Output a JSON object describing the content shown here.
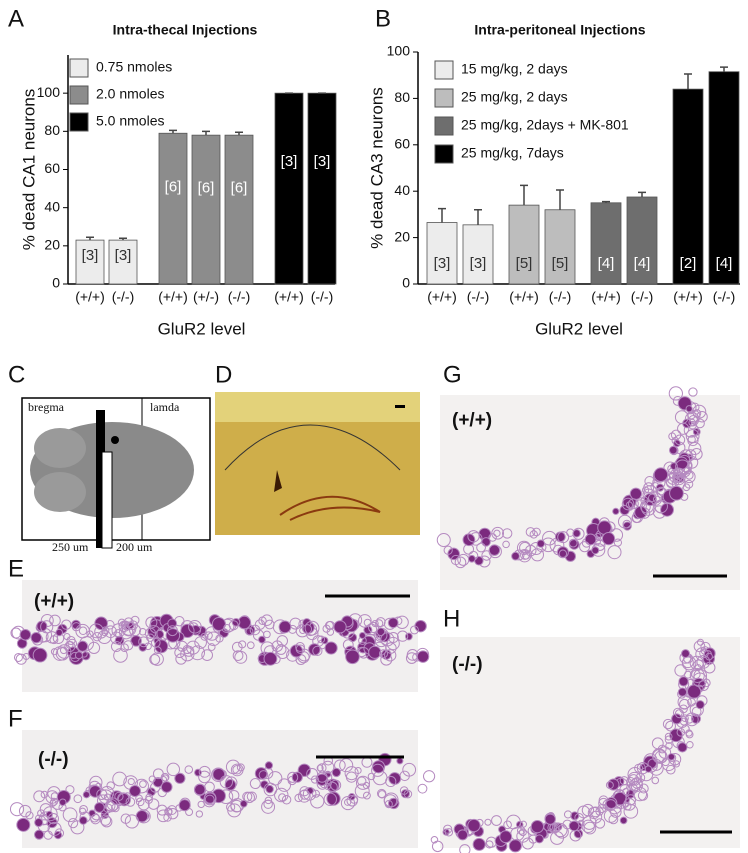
{
  "chart_data": [
    {
      "type": "bar",
      "panel": "A",
      "title": "Intra-thecal Injections",
      "ylabel": "% dead CA1  neurons",
      "xlabel": "GluR2 level",
      "categories": [
        "(+/+)",
        "(-/-)",
        "(+/+)",
        "(+/-)",
        "(-/-)",
        "(+/+)",
        "(-/-)"
      ],
      "series": [
        {
          "name": "0.75 nmoles",
          "color": "#ececec",
          "values": [
            23,
            23,
            null,
            null,
            null,
            null,
            null
          ],
          "errors": [
            1.5,
            1,
            null,
            null,
            null,
            null,
            null
          ]
        },
        {
          "name": "2.0 nmoles",
          "color": "#8c8c8c",
          "values": [
            null,
            null,
            79,
            78,
            78,
            null,
            null
          ],
          "errors": [
            null,
            null,
            1.5,
            2,
            1.5,
            null,
            null
          ]
        },
        {
          "name": "5.0 nmoles",
          "color": "#000000",
          "values": [
            null,
            null,
            null,
            null,
            null,
            100,
            100
          ],
          "errors": [
            null,
            null,
            null,
            null,
            null,
            0,
            0
          ]
        }
      ],
      "bar_labels": [
        "[3]",
        "[3]",
        "[6]",
        "[6]",
        "[6]",
        "[3]",
        "[3]"
      ],
      "ylim": [
        0,
        120
      ],
      "yticks": [
        0,
        20,
        40,
        60,
        80,
        100
      ],
      "grid": false
    },
    {
      "type": "bar",
      "panel": "B",
      "title": "Intra-peritoneal Injections",
      "ylabel": "% dead CA3 neurons",
      "xlabel": "GluR2 level",
      "categories": [
        "(+/+)",
        "(-/-)",
        "(+/+)",
        "(-/-)",
        "(+/+)",
        "(-/-)",
        "(+/+)",
        "(-/-)"
      ],
      "series": [
        {
          "name": "15 mg/kg, 2 days",
          "color": "#ececec",
          "values": [
            26.5,
            25.5,
            null,
            null,
            null,
            null,
            null,
            null
          ],
          "errors": [
            6,
            6.5,
            null,
            null,
            null,
            null,
            null,
            null
          ]
        },
        {
          "name": "25 mg/kg, 2 days",
          "color": "#bdbdbd",
          "values": [
            null,
            null,
            34,
            32,
            null,
            null,
            null,
            null
          ],
          "errors": [
            null,
            null,
            8.5,
            8.5,
            null,
            null,
            null,
            null
          ]
        },
        {
          "name": "25 mg/kg, 2days + MK-801",
          "color": "#6e6e6e",
          "values": [
            null,
            null,
            null,
            null,
            35,
            37.5,
            null,
            null
          ],
          "errors": [
            null,
            null,
            null,
            null,
            0.5,
            2,
            null,
            null
          ]
        },
        {
          "name": "25 mg/kg, 7days",
          "color": "#000000",
          "values": [
            null,
            null,
            null,
            null,
            null,
            null,
            84,
            91.5
          ],
          "errors": [
            null,
            null,
            null,
            null,
            null,
            null,
            6.5,
            2
          ]
        }
      ],
      "bar_labels": [
        "[3]",
        "[3]",
        "[5]",
        "[5]",
        "[4]",
        "[4]",
        "[2]",
        "[4]"
      ],
      "ylim": [
        0,
        100
      ],
      "yticks": [
        0,
        20,
        40,
        60,
        80,
        100
      ],
      "grid": false
    }
  ],
  "panels": {
    "C": {
      "letter": "C",
      "left": "bregma",
      "right": "lamda",
      "left_width": "250 um",
      "right_width": "200 um"
    },
    "D": {
      "letter": "D"
    },
    "E": {
      "letter": "E",
      "genotype": "(+/+)"
    },
    "F": {
      "letter": "F",
      "genotype": "(-/-)"
    },
    "G": {
      "letter": "G",
      "genotype": "(+/+)"
    },
    "H": {
      "letter": "H",
      "genotype": "(-/-)"
    }
  }
}
